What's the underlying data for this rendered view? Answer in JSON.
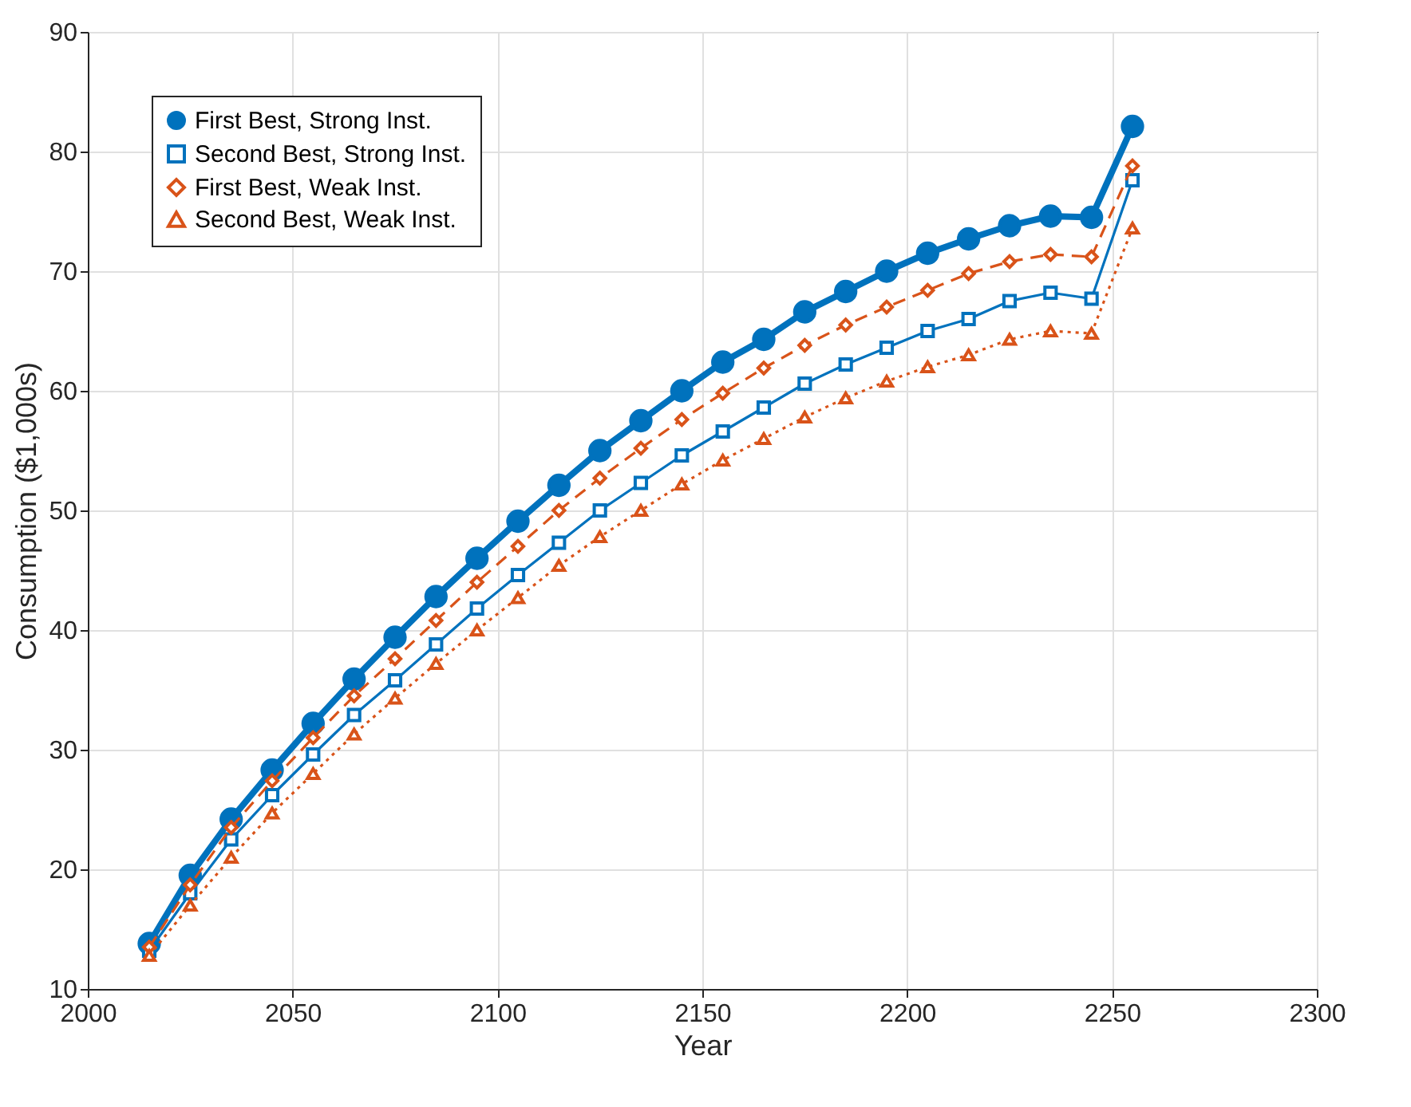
{
  "chart_data": {
    "type": "line",
    "xlabel": "Year",
    "ylabel": "Consumption ($1,000s)",
    "x": [
      2015,
      2025,
      2035,
      2045,
      2055,
      2065,
      2075,
      2085,
      2095,
      2105,
      2115,
      2125,
      2135,
      2145,
      2155,
      2165,
      2175,
      2185,
      2195,
      2205,
      2215,
      2225,
      2235,
      2245,
      2255
    ],
    "xlim": [
      2000,
      2300
    ],
    "xticks": [
      2000,
      2050,
      2100,
      2150,
      2200,
      2250,
      2300
    ],
    "ylim": [
      10,
      90
    ],
    "yticks": [
      10,
      20,
      30,
      40,
      50,
      60,
      70,
      80,
      90
    ],
    "grid": true,
    "legend": "top left",
    "series": [
      {
        "name": "First Best, Strong Inst.",
        "color": "#0072bd",
        "marker": "circle",
        "line_style": "solid",
        "values": [
          13.8,
          19.5,
          24.2,
          28.3,
          32.2,
          35.9,
          39.4,
          42.8,
          46.0,
          49.1,
          52.1,
          55.0,
          57.5,
          60.0,
          62.4,
          64.3,
          66.6,
          68.3,
          70.0,
          71.5,
          72.7,
          73.8,
          74.6,
          74.5,
          82.1
        ]
      },
      {
        "name": "Second Best, Strong Inst.",
        "color": "#0072bd",
        "marker": "square",
        "line_style": "solid",
        "values": [
          13.2,
          18.0,
          22.5,
          26.2,
          29.6,
          32.9,
          35.8,
          38.8,
          41.8,
          44.6,
          47.3,
          50.0,
          52.3,
          54.6,
          56.6,
          58.6,
          60.6,
          62.2,
          63.6,
          65.0,
          66.0,
          67.5,
          68.2,
          67.7,
          77.6
        ]
      },
      {
        "name": "First Best, Weak Inst.",
        "color": "#d95319",
        "marker": "diamond",
        "line_style": "dashed",
        "values": [
          13.5,
          18.7,
          23.5,
          27.4,
          31.0,
          34.5,
          37.6,
          40.8,
          44.0,
          47.0,
          50.0,
          52.7,
          55.2,
          57.6,
          59.8,
          61.9,
          63.8,
          65.5,
          67.0,
          68.4,
          69.8,
          70.8,
          71.4,
          71.2,
          78.8
        ]
      },
      {
        "name": "Second Best, Weak Inst.",
        "color": "#d95319",
        "marker": "triangle",
        "line_style": "dotted",
        "values": [
          12.8,
          17.0,
          21.0,
          24.7,
          28.0,
          31.3,
          34.3,
          37.2,
          40.0,
          42.7,
          45.4,
          47.8,
          50.0,
          52.2,
          54.2,
          56.0,
          57.8,
          59.4,
          60.8,
          62.0,
          63.0,
          64.3,
          65.0,
          64.8,
          73.6
        ]
      }
    ]
  }
}
